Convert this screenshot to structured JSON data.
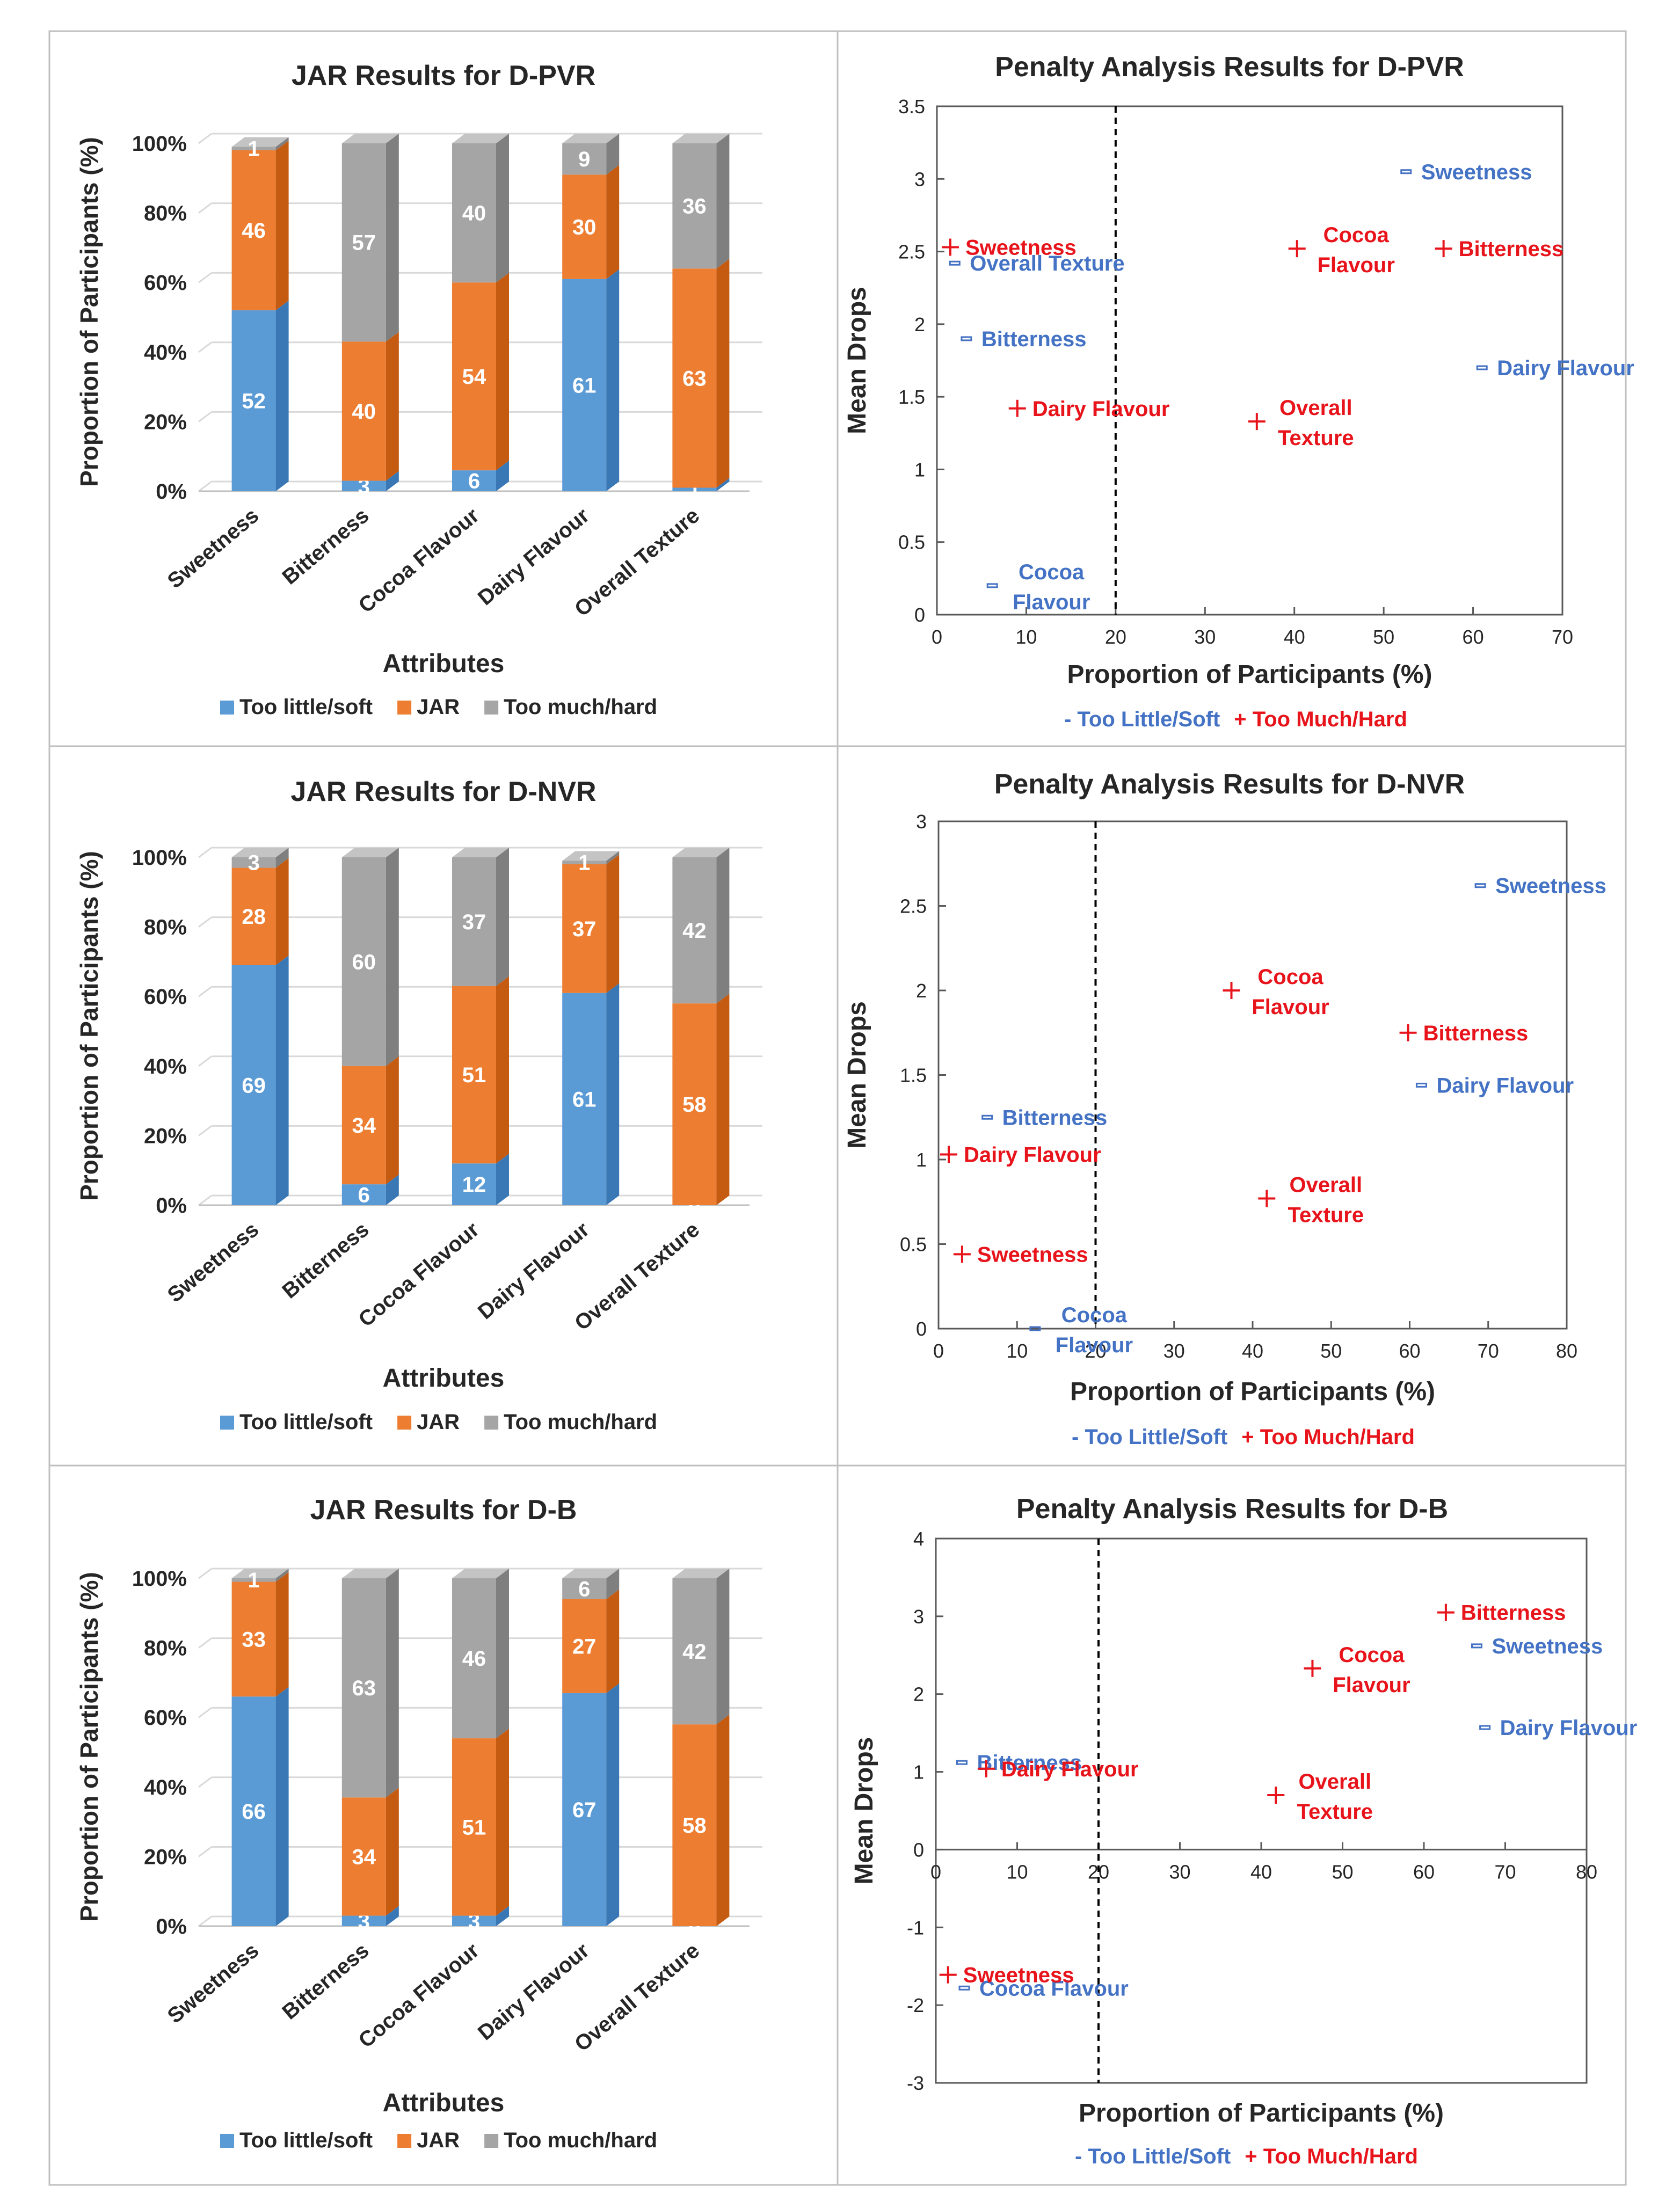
{
  "colors": {
    "too_little": "#5B9BD5",
    "too_little_side": "#3A78B5",
    "too_little_top": "#8AB8E6",
    "jar": "#ED7D31",
    "jar_side": "#C55A11",
    "jar_top": "#F4A672",
    "too_much": "#A5A5A5",
    "too_much_side": "#7F7F7F",
    "too_much_top": "#C4C4C4",
    "minus_marker": "#4472C4",
    "plus_marker": "#E8141B",
    "grid": "#D9D9D9"
  },
  "chart_data": [
    {
      "type": "bar",
      "stacked": true,
      "title": "JAR Results for D-PVR",
      "xlabel": "Attributes",
      "ylabel": "Proportion of Participants (%)",
      "ylim": [
        0,
        100
      ],
      "yticks": [
        "0%",
        "20%",
        "40%",
        "60%",
        "80%",
        "100%"
      ],
      "categories": [
        "Sweetness",
        "Bitterness",
        "Cocoa Flavour",
        "Dairy Flavour",
        "Overall Texture"
      ],
      "series": [
        {
          "name": "Too little/soft",
          "values": [
            52,
            3,
            6,
            61,
            1
          ]
        },
        {
          "name": "JAR",
          "values": [
            46,
            40,
            54,
            30,
            63
          ]
        },
        {
          "name": "Too much/hard",
          "values": [
            1,
            57,
            40,
            9,
            36
          ]
        }
      ],
      "legend": "bottom"
    },
    {
      "type": "scatter",
      "title": "Penalty Analysis Results for D-PVR",
      "xlabel": "Proportion of Participants (%)",
      "ylabel": "Mean Drops",
      "xlim": [
        0,
        70
      ],
      "ylim": [
        0,
        3.5
      ],
      "xticks": [
        0,
        10,
        20,
        30,
        40,
        50,
        60,
        70
      ],
      "yticks": [
        "0",
        "0.5",
        "1",
        "1.5",
        "2",
        "2.5",
        "3",
        "3.5"
      ],
      "threshold_x": 20,
      "legend": {
        "minus": "- Too Little/Soft",
        "plus": "+ Too Much/Hard"
      },
      "series": [
        {
          "name": "Too Little/Soft",
          "marker": "minus",
          "points": [
            {
              "x": 52.5,
              "y": 3.05,
              "label": [
                "Sweetness"
              ]
            },
            {
              "x": 2,
              "y": 2.42,
              "label": [
                "Overall Texture"
              ]
            },
            {
              "x": 3.3,
              "y": 1.9,
              "label": [
                "Bitterness"
              ]
            },
            {
              "x": 61,
              "y": 1.7,
              "label": [
                "Dairy Flavour"
              ]
            },
            {
              "x": 6.2,
              "y": 0.2,
              "label": [
                "Cocoa",
                "Flavour"
              ]
            }
          ]
        },
        {
          "name": "Too Much/Hard",
          "marker": "plus",
          "points": [
            {
              "x": 1.5,
              "y": 2.53,
              "label": [
                "Sweetness"
              ]
            },
            {
              "x": 40.3,
              "y": 2.52,
              "label": [
                "Cocoa",
                "Flavour"
              ]
            },
            {
              "x": 56.7,
              "y": 2.52,
              "label": [
                "Bitterness"
              ]
            },
            {
              "x": 9,
              "y": 1.42,
              "label": [
                "Dairy Flavour"
              ]
            },
            {
              "x": 35.8,
              "y": 1.33,
              "label": [
                "Overall",
                "Texture"
              ]
            }
          ]
        }
      ]
    },
    {
      "type": "bar",
      "stacked": true,
      "title": "JAR Results for D-NVR",
      "xlabel": "Attributes",
      "ylabel": "Proportion of Participants (%)",
      "ylim": [
        0,
        100
      ],
      "yticks": [
        "0%",
        "20%",
        "40%",
        "60%",
        "80%",
        "100%"
      ],
      "categories": [
        "Sweetness",
        "Bitterness",
        "Cocoa Flavour",
        "Dairy Flavour",
        "Overall Texture"
      ],
      "series": [
        {
          "name": "Too little/soft",
          "values": [
            69,
            6,
            12,
            61,
            0
          ]
        },
        {
          "name": "JAR",
          "values": [
            28,
            34,
            51,
            37,
            58
          ]
        },
        {
          "name": "Too much/hard",
          "values": [
            3,
            60,
            37,
            1,
            42
          ]
        }
      ],
      "legend": "bottom"
    },
    {
      "type": "scatter",
      "title": "Penalty Analysis Results for D-NVR",
      "xlabel": "Proportion of Participants (%)",
      "ylabel": "Mean Drops",
      "xlim": [
        0,
        80
      ],
      "ylim": [
        0,
        3
      ],
      "xticks": [
        0,
        10,
        20,
        30,
        40,
        50,
        60,
        70,
        80
      ],
      "yticks": [
        "0",
        "0.5",
        "1",
        "1.5",
        "2",
        "2.5",
        "3"
      ],
      "threshold_x": 20,
      "legend": {
        "minus": "- Too Little/Soft",
        "plus": "+ Too Much/Hard"
      },
      "series": [
        {
          "name": "Too Little/Soft",
          "marker": "minus",
          "points": [
            {
              "x": 69,
              "y": 2.62,
              "label": [
                "Sweetness"
              ]
            },
            {
              "x": 61.5,
              "y": 1.44,
              "label": [
                "Dairy Flavour"
              ]
            },
            {
              "x": 6.2,
              "y": 1.25,
              "label": [
                "Bitterness"
              ]
            },
            {
              "x": 12.3,
              "y": 0.0,
              "label": [
                "Cocoa",
                "Flavour"
              ]
            }
          ]
        },
        {
          "name": "Too Much/Hard",
          "marker": "plus",
          "points": [
            {
              "x": 37.3,
              "y": 2.0,
              "label": [
                "Cocoa",
                "Flavour"
              ]
            },
            {
              "x": 59.8,
              "y": 1.75,
              "label": [
                "Bitterness"
              ]
            },
            {
              "x": 1.3,
              "y": 1.03,
              "label": [
                "Dairy Flavour"
              ]
            },
            {
              "x": 41.8,
              "y": 0.77,
              "label": [
                "Overall",
                "Texture"
              ]
            },
            {
              "x": 3,
              "y": 0.44,
              "label": [
                "Sweetness"
              ]
            }
          ]
        }
      ]
    },
    {
      "type": "bar",
      "stacked": true,
      "title": "JAR Results for D-B",
      "xlabel": "Attributes",
      "ylabel": "Proportion of Participants (%)",
      "ylim": [
        0,
        100
      ],
      "yticks": [
        "0%",
        "20%",
        "40%",
        "60%",
        "80%",
        "100%"
      ],
      "categories": [
        "Sweetness",
        "Bitterness",
        "Cocoa Flavour",
        "Dairy Flavour",
        "Overall Texture"
      ],
      "series": [
        {
          "name": "Too little/soft",
          "values": [
            66,
            3,
            3,
            67,
            0
          ]
        },
        {
          "name": "JAR",
          "values": [
            33,
            34,
            51,
            27,
            58
          ]
        },
        {
          "name": "Too much/hard",
          "values": [
            1,
            63,
            46,
            6,
            42
          ]
        }
      ],
      "legend": "bottom"
    },
    {
      "type": "scatter",
      "title": "Penalty Analysis Results for D-B",
      "xlabel": "Proportion of Participants (%)",
      "ylabel": "Mean Drops",
      "xlim": [
        0,
        80
      ],
      "ylim": [
        -3,
        4
      ],
      "xticks": [
        0,
        10,
        20,
        30,
        40,
        50,
        60,
        70,
        80
      ],
      "yticks": [
        "-3",
        "-2",
        "-1",
        "0",
        "1",
        "2",
        "3",
        "4"
      ],
      "threshold_x": 20,
      "legend": {
        "minus": "- Too Little/Soft",
        "plus": "+ Too Much/Hard"
      },
      "series": [
        {
          "name": "Too Little/Soft",
          "marker": "minus",
          "points": [
            {
              "x": 66.5,
              "y": 2.62,
              "label": [
                "Sweetness"
              ]
            },
            {
              "x": 67.5,
              "y": 1.57,
              "label": [
                "Dairy Flavour"
              ]
            },
            {
              "x": 3.2,
              "y": 1.12,
              "label": [
                "Bitterness"
              ]
            },
            {
              "x": 3.5,
              "y": -1.78,
              "label": [
                "Cocoa Flavour"
              ]
            }
          ]
        },
        {
          "name": "Too Much/Hard",
          "marker": "plus",
          "points": [
            {
              "x": 62.7,
              "y": 3.05,
              "label": [
                "Bitterness"
              ]
            },
            {
              "x": 46.3,
              "y": 2.33,
              "label": [
                "Cocoa",
                "Flavour"
              ]
            },
            {
              "x": 6.2,
              "y": 1.04,
              "label": [
                "Dairy Flavour"
              ]
            },
            {
              "x": 41.8,
              "y": 0.7,
              "label": [
                "Overall",
                "Texture"
              ]
            },
            {
              "x": 1.5,
              "y": -1.61,
              "label": [
                "Sweetness"
              ]
            }
          ]
        }
      ]
    }
  ]
}
